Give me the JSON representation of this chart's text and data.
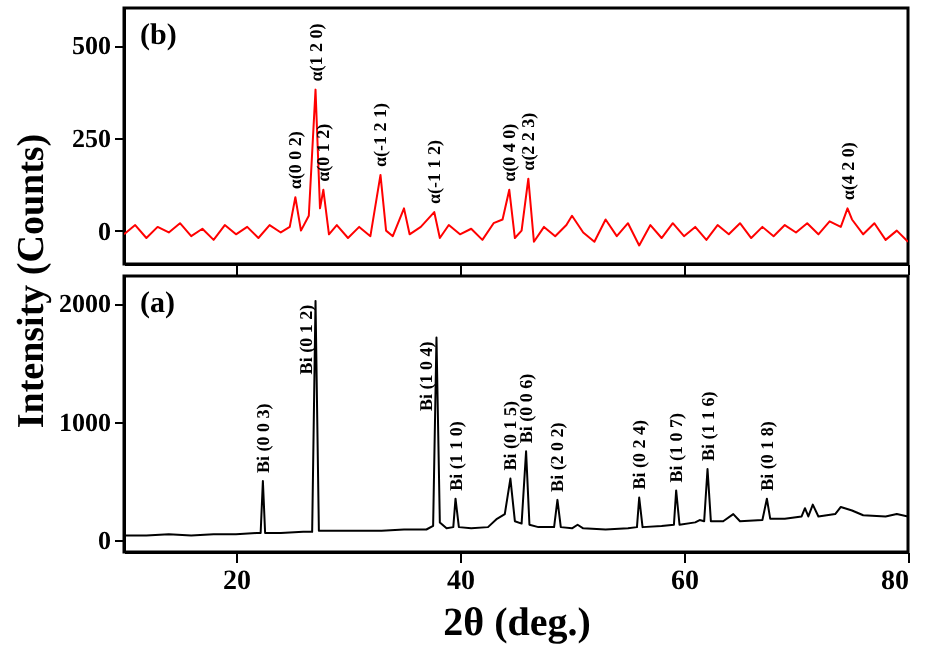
{
  "chart_data": [
    {
      "type": "line",
      "tick_labels": "y",
      "xlim": [
        10,
        80
      ],
      "xticks": [
        20,
        40,
        60,
        80
      ],
      "ylim": [
        -90,
        600
      ],
      "yticks": [
        0,
        250,
        500
      ],
      "series": [
        {
          "color": "#ff0000",
          "x": [
            10,
            11,
            12,
            13,
            14,
            15,
            16,
            17,
            18,
            19,
            20,
            21,
            22,
            23,
            24,
            24.8,
            25.3,
            25.8,
            26.5,
            27.1,
            27.5,
            27.8,
            28.3,
            29,
            30,
            31,
            32,
            32.9,
            33.4,
            34,
            35,
            35.5,
            36.5,
            37.7,
            38.2,
            39,
            40,
            41,
            42,
            43,
            43.8,
            44.4,
            44.9,
            45.5,
            46.1,
            46.6,
            47.5,
            48.5,
            49.5,
            50,
            51,
            52,
            53,
            54,
            55,
            56,
            57,
            58,
            59,
            60,
            61,
            62,
            63,
            64,
            65,
            66,
            67,
            68,
            69,
            70,
            71,
            72,
            73,
            74,
            74.6,
            75,
            76,
            77,
            78,
            79,
            80
          ],
          "values": [
            -10,
            15,
            -20,
            10,
            -5,
            20,
            -15,
            5,
            -25,
            15,
            -10,
            10,
            -20,
            15,
            -5,
            10,
            90,
            0,
            40,
            380,
            60,
            110,
            -10,
            15,
            -20,
            10,
            -15,
            150,
            0,
            -15,
            60,
            -10,
            10,
            50,
            -20,
            15,
            -10,
            5,
            -25,
            20,
            30,
            110,
            -20,
            0,
            140,
            -30,
            10,
            -15,
            15,
            40,
            -5,
            -30,
            30,
            -15,
            20,
            -40,
            15,
            -20,
            20,
            -15,
            10,
            -25,
            15,
            -10,
            20,
            -20,
            10,
            -15,
            15,
            -5,
            20,
            -10,
            25,
            10,
            60,
            30,
            -10,
            20,
            -25,
            0,
            -30
          ]
        }
      ],
      "annotations": [
        "(b)",
        {
          "text": "α(0 0 2)",
          "x": 25.3,
          "y": 90
        },
        {
          "text": "α(1 2 0)",
          "x": 27.1,
          "y": 380
        },
        {
          "text": "α(0 1 2)",
          "x": 27.8,
          "y": 110
        },
        {
          "text": "α(-1 2 1)",
          "x": 32.9,
          "y": 150
        },
        {
          "text": "α(-1 1 2)",
          "x": 37.7,
          "y": 50
        },
        {
          "text": "α(0 4 0)",
          "x": 44.4,
          "y": 110
        },
        {
          "text": "α(2 2 3)",
          "x": 46.1,
          "y": 140
        },
        {
          "text": "α(4 2 0)",
          "x": 74.6,
          "y": 60
        }
      ]
    },
    {
      "type": "line",
      "xlabel": "2θ (deg.)",
      "ylabel": "Intensity (Counts)",
      "xlim": [
        10,
        80
      ],
      "xticks": [
        20,
        40,
        60,
        80
      ],
      "ylim": [
        -100,
        2230
      ],
      "yticks": [
        0,
        1000,
        2000
      ],
      "series": [
        {
          "color": "#000000",
          "x": [
            10,
            12,
            14,
            16,
            18,
            20,
            21.8,
            22.2,
            22.4,
            22.6,
            24,
            26,
            26.8,
            27.1,
            27.4,
            29,
            31,
            33,
            35,
            37,
            37.6,
            37.9,
            38.2,
            38.8,
            39.4,
            39.6,
            39.9,
            41,
            42.5,
            43.3,
            44,
            44.5,
            44.9,
            45.5,
            45.9,
            46.2,
            47,
            48.4,
            48.7,
            49,
            50,
            50.5,
            51,
            53,
            55,
            55.8,
            56,
            56.3,
            58,
            59.1,
            59.3,
            59.6,
            61,
            61.4,
            61.8,
            62.1,
            62.4,
            63.5,
            64.4,
            65,
            67,
            67.4,
            67.7,
            69,
            70.5,
            70.8,
            71.1,
            71.5,
            72,
            73.5,
            74,
            75,
            76,
            78,
            79,
            80
          ],
          "values": [
            40,
            40,
            50,
            40,
            50,
            50,
            60,
            60,
            500,
            60,
            60,
            70,
            70,
            2020,
            80,
            80,
            80,
            80,
            90,
            90,
            120,
            1710,
            150,
            100,
            110,
            350,
            110,
            100,
            110,
            180,
            220,
            520,
            160,
            140,
            750,
            130,
            110,
            110,
            340,
            110,
            100,
            130,
            100,
            90,
            100,
            110,
            360,
            110,
            120,
            130,
            420,
            130,
            150,
            170,
            160,
            600,
            160,
            160,
            220,
            160,
            170,
            350,
            180,
            180,
            200,
            270,
            200,
            300,
            200,
            220,
            280,
            250,
            210,
            200,
            220,
            200
          ]
        }
      ],
      "annotations": [
        "(a)",
        {
          "text": "Bi (0 0 3)",
          "x": 22.4,
          "y": 500
        },
        {
          "text": "Bi (0 1 2)",
          "x": 27.1,
          "y": 2020
        },
        {
          "text": "Bi (1 0 4)",
          "x": 37.9,
          "y": 1710
        },
        {
          "text": "Bi (1 1 0)",
          "x": 39.6,
          "y": 350
        },
        {
          "text": "Bi (0 1 5)",
          "x": 44.5,
          "y": 520
        },
        {
          "text": "Bi (0 0 6)",
          "x": 45.9,
          "y": 750
        },
        {
          "text": "Bi (2 0 2)",
          "x": 48.7,
          "y": 340
        },
        {
          "text": "Bi (0 2 4)",
          "x": 56.0,
          "y": 360
        },
        {
          "text": "Bi (1 0 7)",
          "x": 59.3,
          "y": 420
        },
        {
          "text": "Bi (1 1 6)",
          "x": 62.1,
          "y": 600
        },
        {
          "text": "Bi (0 1 8)",
          "x": 67.4,
          "y": 350
        }
      ]
    }
  ]
}
